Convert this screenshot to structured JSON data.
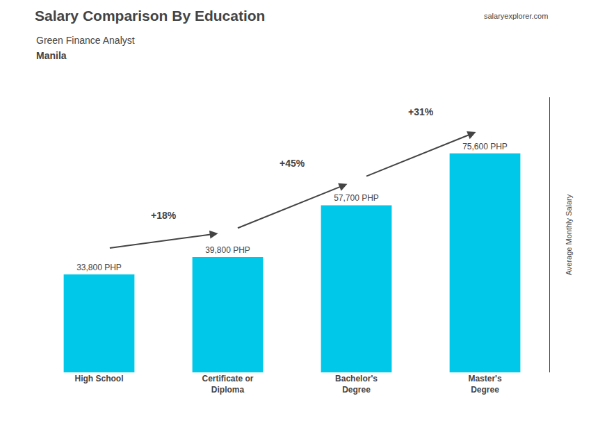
{
  "chart_data": {
    "type": "bar",
    "title": "Salary Comparison By Education",
    "subtitle": "Green Finance Analyst",
    "ylabel": "Average Monthly Salary",
    "categories": [
      "High School",
      "Certificate or\nDiploma",
      "Bachelor's\nDegree",
      "Master's\nDegree"
    ],
    "values": [
      33800,
      39800,
      57700,
      75600
    ],
    "value_labels": [
      "33,800 PHP",
      "39,800 PHP",
      "57,700 PHP",
      "75,600 PHP"
    ],
    "data_labels": true,
    "color": "#00c8e8",
    "ylim": [
      0,
      95000
    ],
    "grid": false,
    "tick_labels": "x",
    "annotations": [
      {
        "text": "+18%",
        "between": [
          "High School",
          "Certificate or\nDiploma"
        ]
      },
      {
        "text": "+45%",
        "between": [
          "Certificate or\nDiploma",
          "Bachelor's\nDegree"
        ]
      },
      {
        "text": "+31%",
        "between": [
          "Bachelor's\nDegree",
          "Master's\nDegree"
        ]
      },
      {
        "text": "Manila"
      },
      {
        "text": "salaryexplorer.com"
      }
    ]
  }
}
